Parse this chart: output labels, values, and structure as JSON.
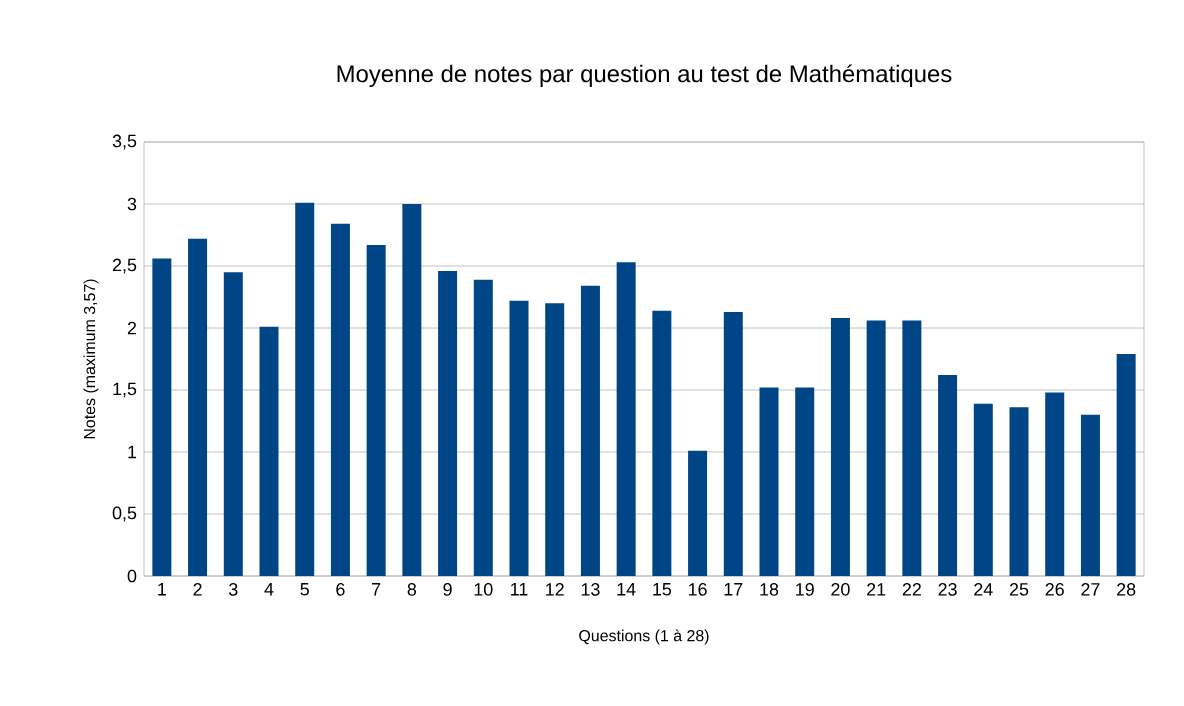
{
  "chart_data": {
    "type": "bar",
    "title": "Moyenne de notes par question au test de Mathématiques",
    "xlabel": "Questions (1 à 28)",
    "ylabel": "Notes (maximum 3,57)",
    "categories": [
      "1",
      "2",
      "3",
      "4",
      "5",
      "6",
      "7",
      "8",
      "9",
      "10",
      "11",
      "12",
      "13",
      "14",
      "15",
      "16",
      "17",
      "18",
      "19",
      "20",
      "21",
      "22",
      "23",
      "24",
      "25",
      "26",
      "27",
      "28"
    ],
    "values": [
      2.56,
      2.72,
      2.45,
      2.01,
      3.01,
      2.84,
      2.67,
      3.0,
      2.46,
      2.39,
      2.22,
      2.2,
      2.34,
      2.53,
      2.14,
      1.01,
      2.13,
      1.52,
      1.52,
      2.08,
      2.06,
      2.06,
      1.62,
      1.39,
      1.36,
      1.48,
      1.3,
      1.79
    ],
    "color": "#004586",
    "ylim": [
      0,
      3.5
    ],
    "yticks": [
      0,
      {
        "value": 0.5,
        "label": "0,5"
      },
      1,
      {
        "value": 1.5,
        "label": "1,5"
      },
      2,
      {
        "value": 2.5,
        "label": "2,5"
      },
      3,
      {
        "value": 3.5,
        "label": "3,5"
      }
    ],
    "grid": "y"
  }
}
